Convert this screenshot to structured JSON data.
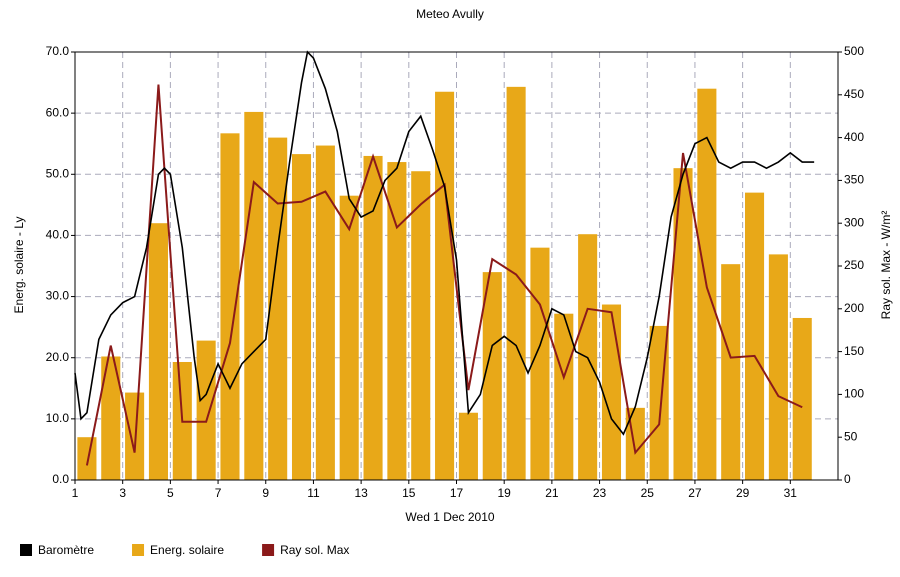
{
  "chart_data": {
    "type": "bar",
    "title": "Meteo  Avully",
    "x_label": "Wed 1 Dec 2010",
    "y_label": "Energ. solaire - Ly",
    "y2_label": "Ray sol. Max - W/m²",
    "xlim": [
      1,
      33
    ],
    "xticks": [
      1,
      3,
      5,
      7,
      9,
      11,
      13,
      15,
      17,
      19,
      21,
      23,
      25,
      27,
      29,
      31
    ],
    "ylim": [
      0,
      70
    ],
    "yticks": [
      {
        "value": 0,
        "label": "0.0"
      },
      {
        "value": 10,
        "label": "10.0"
      },
      {
        "value": 20,
        "label": "20.0"
      },
      {
        "value": 30,
        "label": "30.0"
      },
      {
        "value": 40,
        "label": "40.0"
      },
      {
        "value": 50,
        "label": "50.0"
      },
      {
        "value": 60,
        "label": "60.0"
      },
      {
        "value": 70,
        "label": "70.0"
      }
    ],
    "y2lim": [
      0,
      500
    ],
    "y2ticks": [
      0,
      50,
      100,
      150,
      200,
      250,
      300,
      350,
      400,
      450,
      500
    ],
    "grid": true,
    "legend": "bottom",
    "series": [
      {
        "name": "Baromètre",
        "type": "line",
        "color": "#000000",
        "x": [
          1,
          1.25,
          1.5,
          2,
          2.5,
          3,
          3.5,
          4,
          4.5,
          4.75,
          5,
          5.5,
          6,
          6.25,
          6.5,
          7,
          7.5,
          8,
          8.5,
          9,
          9.5,
          10,
          10.5,
          10.75,
          11,
          11.5,
          12,
          12.5,
          13,
          13.5,
          14,
          14.5,
          15,
          15.5,
          16,
          16.5,
          17,
          17.5,
          18,
          18.5,
          19,
          19.5,
          20,
          20.5,
          21,
          21.5,
          22,
          22.5,
          23,
          23.5,
          24,
          24.5,
          25,
          25.5,
          26,
          26.5,
          27,
          27.5,
          28,
          28.5,
          29,
          29.5,
          30,
          30.5,
          31,
          31.5,
          32
        ],
        "values": [
          17.5,
          10,
          11,
          23,
          27,
          29,
          30,
          38,
          50,
          51,
          50,
          38,
          20,
          13,
          14,
          19,
          15,
          19,
          21,
          23,
          38,
          52,
          65,
          70,
          69,
          64,
          57,
          46,
          43,
          44,
          49,
          51,
          57,
          59.5,
          54,
          48,
          36,
          11,
          14,
          22,
          23.5,
          22,
          17.5,
          22,
          28,
          27,
          21,
          20,
          16,
          10,
          7.5,
          12,
          20,
          30,
          43,
          50,
          55,
          56,
          52,
          51,
          52,
          52,
          51,
          52,
          53.5,
          52,
          52
        ]
      },
      {
        "name": "Energ. solaire",
        "type": "bar",
        "color": "#e8a818",
        "x": [
          1.5,
          2.5,
          3.5,
          4.5,
          5.5,
          6.5,
          7.5,
          8.5,
          9.5,
          10.5,
          11.5,
          12.5,
          13.5,
          14.5,
          15.5,
          16.5,
          17.5,
          18.5,
          19.5,
          20.5,
          21.5,
          22.5,
          23.5,
          24.5,
          25.5,
          26.5,
          27.5,
          28.5,
          29.5,
          30.5,
          31.5
        ],
        "values": [
          7,
          20.2,
          14.3,
          42,
          19.3,
          22.8,
          56.7,
          60.2,
          56,
          53.3,
          54.7,
          46.5,
          53,
          52,
          50.5,
          63.5,
          11,
          34,
          64.3,
          38,
          27.2,
          40.2,
          28.7,
          11.8,
          25.2,
          51,
          64,
          35.3,
          47,
          36.9,
          26.5
        ]
      },
      {
        "name": "Ray sol. Max",
        "type": "line",
        "axis": "y2",
        "color": "#8b1a1a",
        "x": [
          1.5,
          2.5,
          3.5,
          4.5,
          5.5,
          6.5,
          7.5,
          8.5,
          9.5,
          10.5,
          11.5,
          12.5,
          13.5,
          14.5,
          15.5,
          16.5,
          17.5,
          18.5,
          19.5,
          20.5,
          21.5,
          22.5,
          23.5,
          24.5,
          25.5,
          26.5,
          27.5,
          28.5,
          29.5,
          30.5,
          31.5
        ],
        "values": [
          17,
          157,
          32,
          462,
          68,
          68,
          160,
          348,
          323,
          325,
          337,
          293,
          378,
          295,
          322,
          345,
          105,
          258,
          240,
          205,
          120,
          200,
          196,
          32,
          65,
          382,
          225,
          143,
          145,
          98,
          85
        ]
      }
    ]
  }
}
